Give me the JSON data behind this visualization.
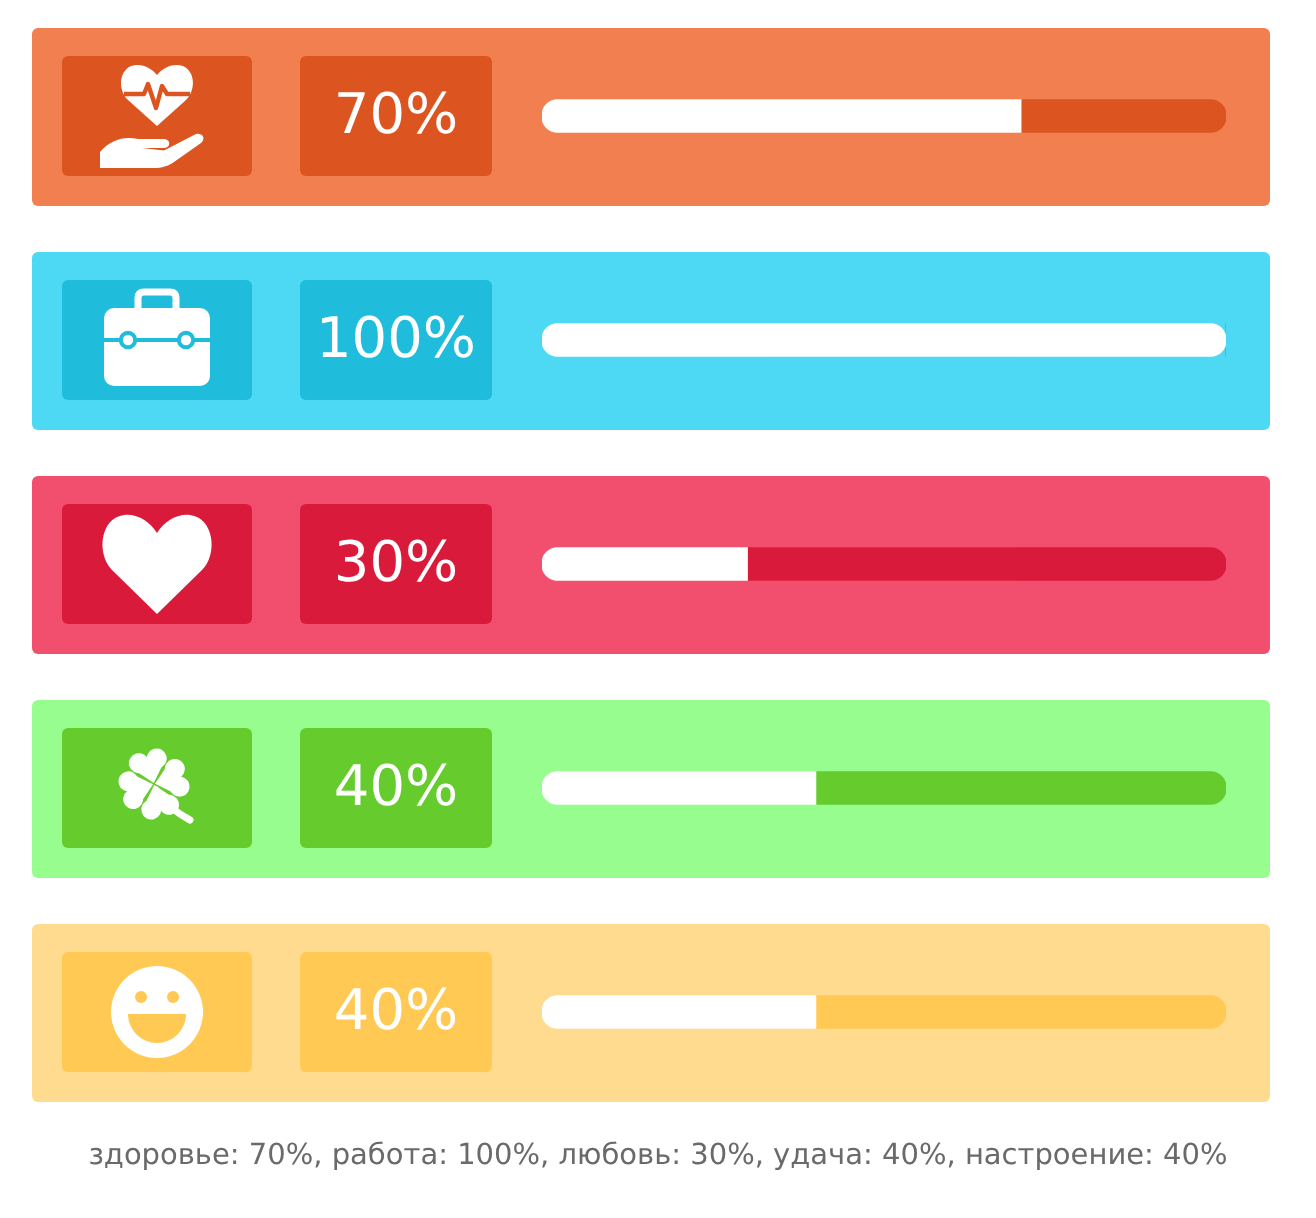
{
  "chart_data": {
    "type": "bar",
    "orientation": "horizontal",
    "stacked": true,
    "categories": [
      null,
      null,
      null,
      null,
      null
    ],
    "series": [
      {
        "color": "#ffffff",
        "values": [
          70,
          100,
          30,
          40,
          40
        ],
        "value_labels": [
          "70%",
          "100%",
          "30%",
          "40%",
          "40%"
        ]
      },
      {
        "colors": [
          "#dc5520",
          "#1fbcdc",
          "#da1a3a",
          "#66cc2e",
          "#ffc953"
        ],
        "values": [
          30,
          0,
          70,
          60,
          60
        ]
      }
    ],
    "xlim": [
      0,
      100
    ],
    "tick_labels": false,
    "legend": false,
    "annotations": [
      "здоровье: 70%, работа: 100%, любовь: 30%, удача: 40%, настроение: 40%"
    ]
  }
}
